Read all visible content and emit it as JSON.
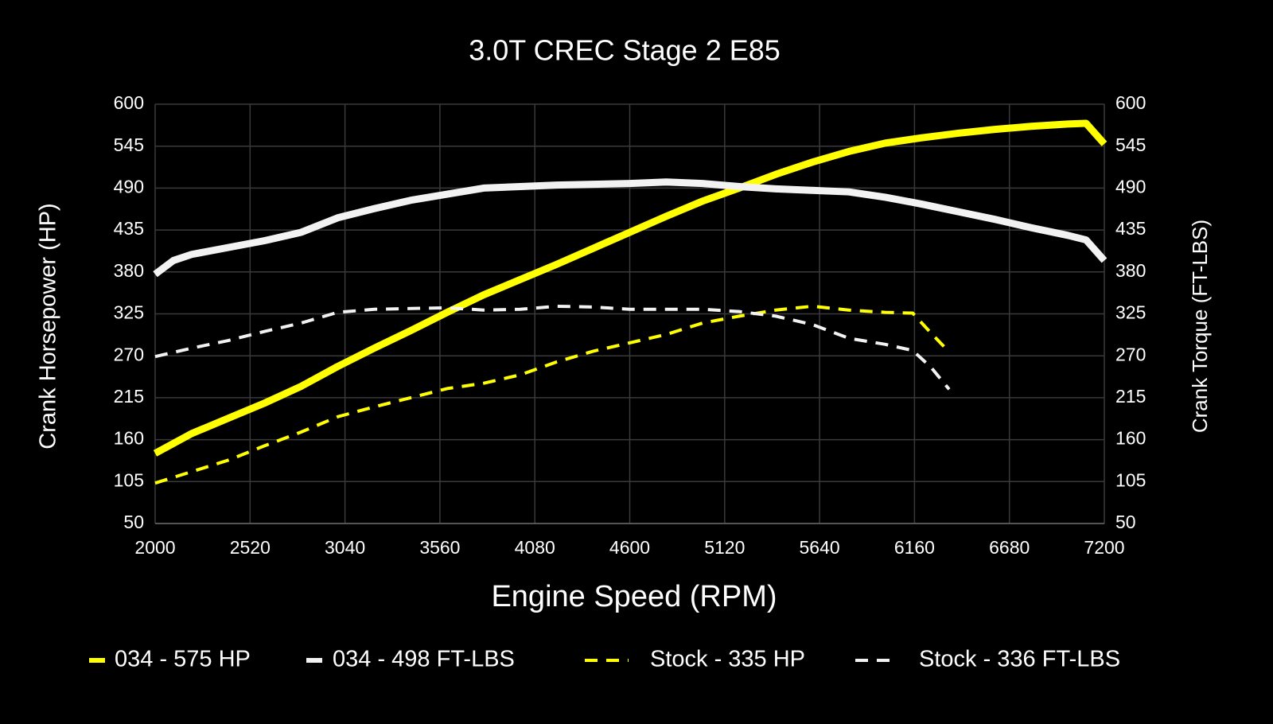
{
  "chart_data": {
    "type": "line",
    "title": "3.0T CREC Stage 2 E85",
    "x_label": "Engine Speed (RPM)",
    "y_label": "Crank Horsepower (HP)",
    "y2_label": "Crank Torque (FT-LBS)",
    "xlim": [
      2000,
      7200
    ],
    "xticks": [
      2000,
      2520,
      3040,
      3560,
      4080,
      4600,
      5120,
      5640,
      6160,
      6680,
      7200
    ],
    "ylim": [
      50,
      600
    ],
    "yticks": [
      50,
      105,
      160,
      215,
      270,
      325,
      380,
      435,
      490,
      545,
      600
    ],
    "y2lim": [
      50,
      600
    ],
    "y2ticks": [
      50,
      105,
      160,
      215,
      270,
      325,
      380,
      435,
      490,
      545,
      600
    ],
    "grid": true,
    "legend": "bottom",
    "series": [
      {
        "name": "034 - 575 HP",
        "color": "#ffff00",
        "line_style": "solid",
        "axis": "y",
        "x": [
          2000,
          2200,
          2400,
          2600,
          2800,
          3000,
          3200,
          3400,
          3600,
          3800,
          4000,
          4200,
          4400,
          4600,
          4800,
          5000,
          5200,
          5400,
          5600,
          5800,
          6000,
          6200,
          6400,
          6600,
          6800,
          7000,
          7100,
          7200
        ],
        "values": [
          142,
          168,
          188,
          208,
          230,
          256,
          280,
          303,
          327,
          350,
          370,
          390,
          411,
          432,
          453,
          473,
          490,
          508,
          524,
          538,
          549,
          556,
          562,
          567,
          571,
          574,
          575,
          548
        ]
      },
      {
        "name": "034 - 498 FT-LBS",
        "color": "#f2f2f2",
        "line_style": "solid",
        "axis": "y2",
        "x": [
          2000,
          2100,
          2200,
          2400,
          2600,
          2800,
          3000,
          3200,
          3400,
          3600,
          3800,
          4000,
          4200,
          4400,
          4600,
          4800,
          5000,
          5200,
          5400,
          5600,
          5800,
          6000,
          6200,
          6400,
          6600,
          6800,
          7000,
          7100,
          7200
        ],
        "values": [
          377,
          395,
          403,
          412,
          421,
          432,
          451,
          463,
          474,
          482,
          490,
          492,
          494,
          495,
          496,
          498,
          496,
          492,
          489,
          487,
          485,
          478,
          469,
          459,
          449,
          438,
          428,
          422,
          395
        ]
      },
      {
        "name": "Stock - 335 HP",
        "color": "#ffff00",
        "line_style": "dashed",
        "axis": "y",
        "x": [
          2000,
          2200,
          2400,
          2600,
          2800,
          3000,
          3200,
          3400,
          3600,
          3800,
          4000,
          4200,
          4400,
          4600,
          4800,
          5000,
          5200,
          5400,
          5600,
          5800,
          6000,
          6150,
          6250,
          6350
        ],
        "values": [
          103,
          118,
          133,
          152,
          170,
          190,
          203,
          215,
          227,
          234,
          245,
          262,
          276,
          287,
          298,
          313,
          322,
          330,
          335,
          330,
          327,
          326,
          300,
          275
        ]
      },
      {
        "name": "Stock - 336 FT-LBS",
        "color": "#f2f2f2",
        "line_style": "dashed",
        "axis": "y2",
        "x": [
          2000,
          2200,
          2400,
          2600,
          2800,
          3000,
          3200,
          3400,
          3600,
          3800,
          4000,
          4200,
          4400,
          4600,
          4800,
          5000,
          5200,
          5400,
          5600,
          5800,
          6000,
          6150,
          6250,
          6350
        ],
        "values": [
          269,
          280,
          290,
          302,
          313,
          327,
          331,
          332,
          333,
          330,
          331,
          335,
          334,
          331,
          331,
          331,
          328,
          322,
          311,
          293,
          285,
          277,
          255,
          226
        ]
      }
    ]
  }
}
